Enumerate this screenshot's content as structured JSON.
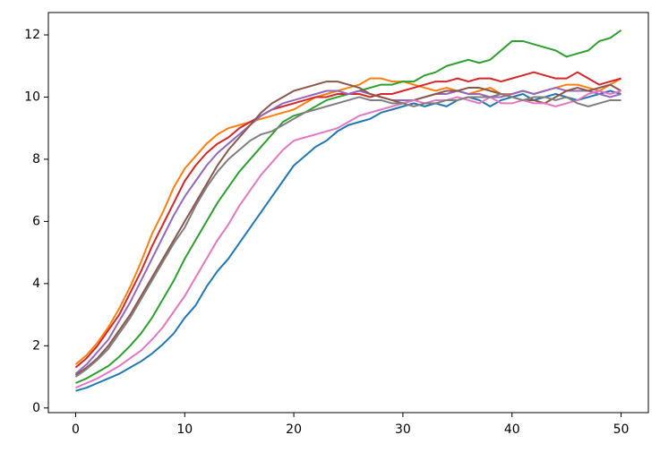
{
  "chart_data": {
    "type": "line",
    "x": [
      0,
      1,
      2,
      3,
      4,
      5,
      6,
      7,
      8,
      9,
      10,
      11,
      12,
      13,
      14,
      15,
      16,
      17,
      18,
      19,
      20,
      21,
      22,
      23,
      24,
      25,
      26,
      27,
      28,
      29,
      30,
      31,
      32,
      33,
      34,
      35,
      36,
      37,
      38,
      39,
      40,
      41,
      42,
      43,
      44,
      45,
      46,
      47,
      48,
      49,
      50
    ],
    "xlim": [
      -2.5,
      52.5
    ],
    "xticks": [
      0,
      10,
      20,
      30,
      40,
      50
    ],
    "ylim": [
      -0.15,
      12.72
    ],
    "yticks": [
      0,
      2,
      4,
      6,
      8,
      10,
      12
    ],
    "series": [
      {
        "color": "#1f77b4",
        "values": [
          0.55,
          0.65,
          0.8,
          0.95,
          1.1,
          1.3,
          1.5,
          1.75,
          2.05,
          2.4,
          2.9,
          3.3,
          3.9,
          4.4,
          4.8,
          5.3,
          5.8,
          6.3,
          6.8,
          7.3,
          7.8,
          8.1,
          8.4,
          8.6,
          8.9,
          9.1,
          9.2,
          9.3,
          9.5,
          9.6,
          9.7,
          9.8,
          9.7,
          9.8,
          9.7,
          9.9,
          10.0,
          9.9,
          9.7,
          9.9,
          10.0,
          10.1,
          9.9,
          10.0,
          10.1,
          10.0,
          9.9,
          10.0,
          10.1,
          10.2,
          10.1
        ]
      },
      {
        "color": "#ff7f0e",
        "values": [
          1.4,
          1.7,
          2.1,
          2.6,
          3.2,
          3.9,
          4.7,
          5.6,
          6.3,
          7.1,
          7.7,
          8.1,
          8.5,
          8.8,
          9.0,
          9.1,
          9.2,
          9.3,
          9.4,
          9.5,
          9.6,
          9.8,
          10.0,
          10.1,
          10.2,
          10.3,
          10.4,
          10.6,
          10.6,
          10.5,
          10.5,
          10.4,
          10.3,
          10.2,
          10.3,
          10.2,
          10.1,
          10.2,
          10.3,
          10.1,
          10.1,
          10.2,
          10.1,
          10.2,
          10.3,
          10.4,
          10.4,
          10.3,
          10.2,
          10.4,
          10.6
        ]
      },
      {
        "color": "#2ca02c",
        "values": [
          0.8,
          0.95,
          1.15,
          1.35,
          1.65,
          2.0,
          2.4,
          2.9,
          3.5,
          4.1,
          4.8,
          5.4,
          6.0,
          6.6,
          7.1,
          7.6,
          8.0,
          8.4,
          8.8,
          9.2,
          9.4,
          9.5,
          9.7,
          9.9,
          10.0,
          10.1,
          10.2,
          10.3,
          10.4,
          10.4,
          10.5,
          10.5,
          10.7,
          10.8,
          11.0,
          11.1,
          11.2,
          11.1,
          11.2,
          11.5,
          11.8,
          11.8,
          11.7,
          11.6,
          11.5,
          11.3,
          11.4,
          11.5,
          11.8,
          11.9,
          12.15
        ]
      },
      {
        "color": "#d62728",
        "values": [
          1.3,
          1.6,
          2.0,
          2.5,
          3.0,
          3.7,
          4.4,
          5.2,
          5.9,
          6.6,
          7.3,
          7.8,
          8.2,
          8.5,
          8.7,
          9.0,
          9.2,
          9.4,
          9.6,
          9.7,
          9.8,
          9.9,
          10.0,
          10.0,
          10.1,
          10.1,
          10.1,
          10.0,
          10.1,
          10.1,
          10.2,
          10.3,
          10.4,
          10.5,
          10.5,
          10.6,
          10.5,
          10.6,
          10.6,
          10.5,
          10.6,
          10.7,
          10.8,
          10.7,
          10.6,
          10.6,
          10.8,
          10.6,
          10.4,
          10.5,
          10.6
        ]
      },
      {
        "color": "#9467bd",
        "values": [
          1.1,
          1.4,
          1.8,
          2.2,
          2.8,
          3.4,
          4.1,
          4.8,
          5.5,
          6.2,
          6.8,
          7.3,
          7.8,
          8.2,
          8.5,
          8.8,
          9.1,
          9.4,
          9.6,
          9.8,
          9.9,
          10.0,
          10.1,
          10.2,
          10.2,
          10.1,
          10.2,
          10.1,
          10.0,
          9.9,
          9.9,
          9.9,
          10.0,
          10.1,
          10.1,
          10.2,
          10.1,
          10.1,
          10.0,
          10.0,
          10.1,
          10.2,
          10.1,
          10.2,
          10.3,
          10.2,
          10.2,
          10.2,
          10.1,
          10.0,
          10.1
        ]
      },
      {
        "color": "#8c564b",
        "values": [
          1.05,
          1.3,
          1.6,
          2.0,
          2.5,
          3.0,
          3.6,
          4.2,
          4.8,
          5.4,
          6.0,
          6.6,
          7.2,
          7.8,
          8.3,
          8.7,
          9.1,
          9.5,
          9.8,
          10.0,
          10.2,
          10.3,
          10.4,
          10.5,
          10.5,
          10.4,
          10.3,
          10.1,
          10.0,
          9.9,
          9.8,
          9.9,
          10.0,
          10.1,
          10.2,
          10.2,
          10.3,
          10.3,
          10.2,
          10.1,
          10.0,
          9.9,
          9.9,
          9.8,
          10.0,
          10.2,
          10.3,
          10.2,
          10.3,
          10.4,
          10.2
        ]
      },
      {
        "color": "#e377c2",
        "values": [
          0.65,
          0.8,
          0.95,
          1.15,
          1.35,
          1.6,
          1.85,
          2.2,
          2.6,
          3.1,
          3.6,
          4.2,
          4.8,
          5.4,
          5.9,
          6.5,
          7.0,
          7.5,
          7.9,
          8.3,
          8.6,
          8.7,
          8.8,
          8.9,
          9.0,
          9.2,
          9.4,
          9.5,
          9.6,
          9.7,
          9.8,
          9.9,
          9.8,
          9.9,
          9.9,
          10.0,
          9.9,
          9.8,
          10.0,
          9.8,
          9.8,
          9.9,
          9.8,
          9.8,
          9.7,
          9.8,
          9.9,
          10.1,
          10.2,
          10.1,
          10.2
        ]
      },
      {
        "color": "#7f7f7f",
        "values": [
          1.0,
          1.25,
          1.55,
          1.9,
          2.4,
          2.9,
          3.5,
          4.1,
          4.7,
          5.3,
          5.8,
          6.5,
          7.1,
          7.6,
          8.0,
          8.3,
          8.6,
          8.8,
          8.9,
          9.1,
          9.3,
          9.5,
          9.6,
          9.7,
          9.8,
          9.9,
          10.0,
          9.9,
          9.9,
          9.8,
          9.8,
          9.7,
          9.8,
          9.8,
          9.9,
          9.9,
          10.0,
          10.0,
          10.0,
          10.1,
          10.0,
          9.9,
          10.0,
          10.0,
          9.9,
          10.0,
          9.8,
          9.7,
          9.8,
          9.9,
          9.9
        ]
      }
    ]
  }
}
